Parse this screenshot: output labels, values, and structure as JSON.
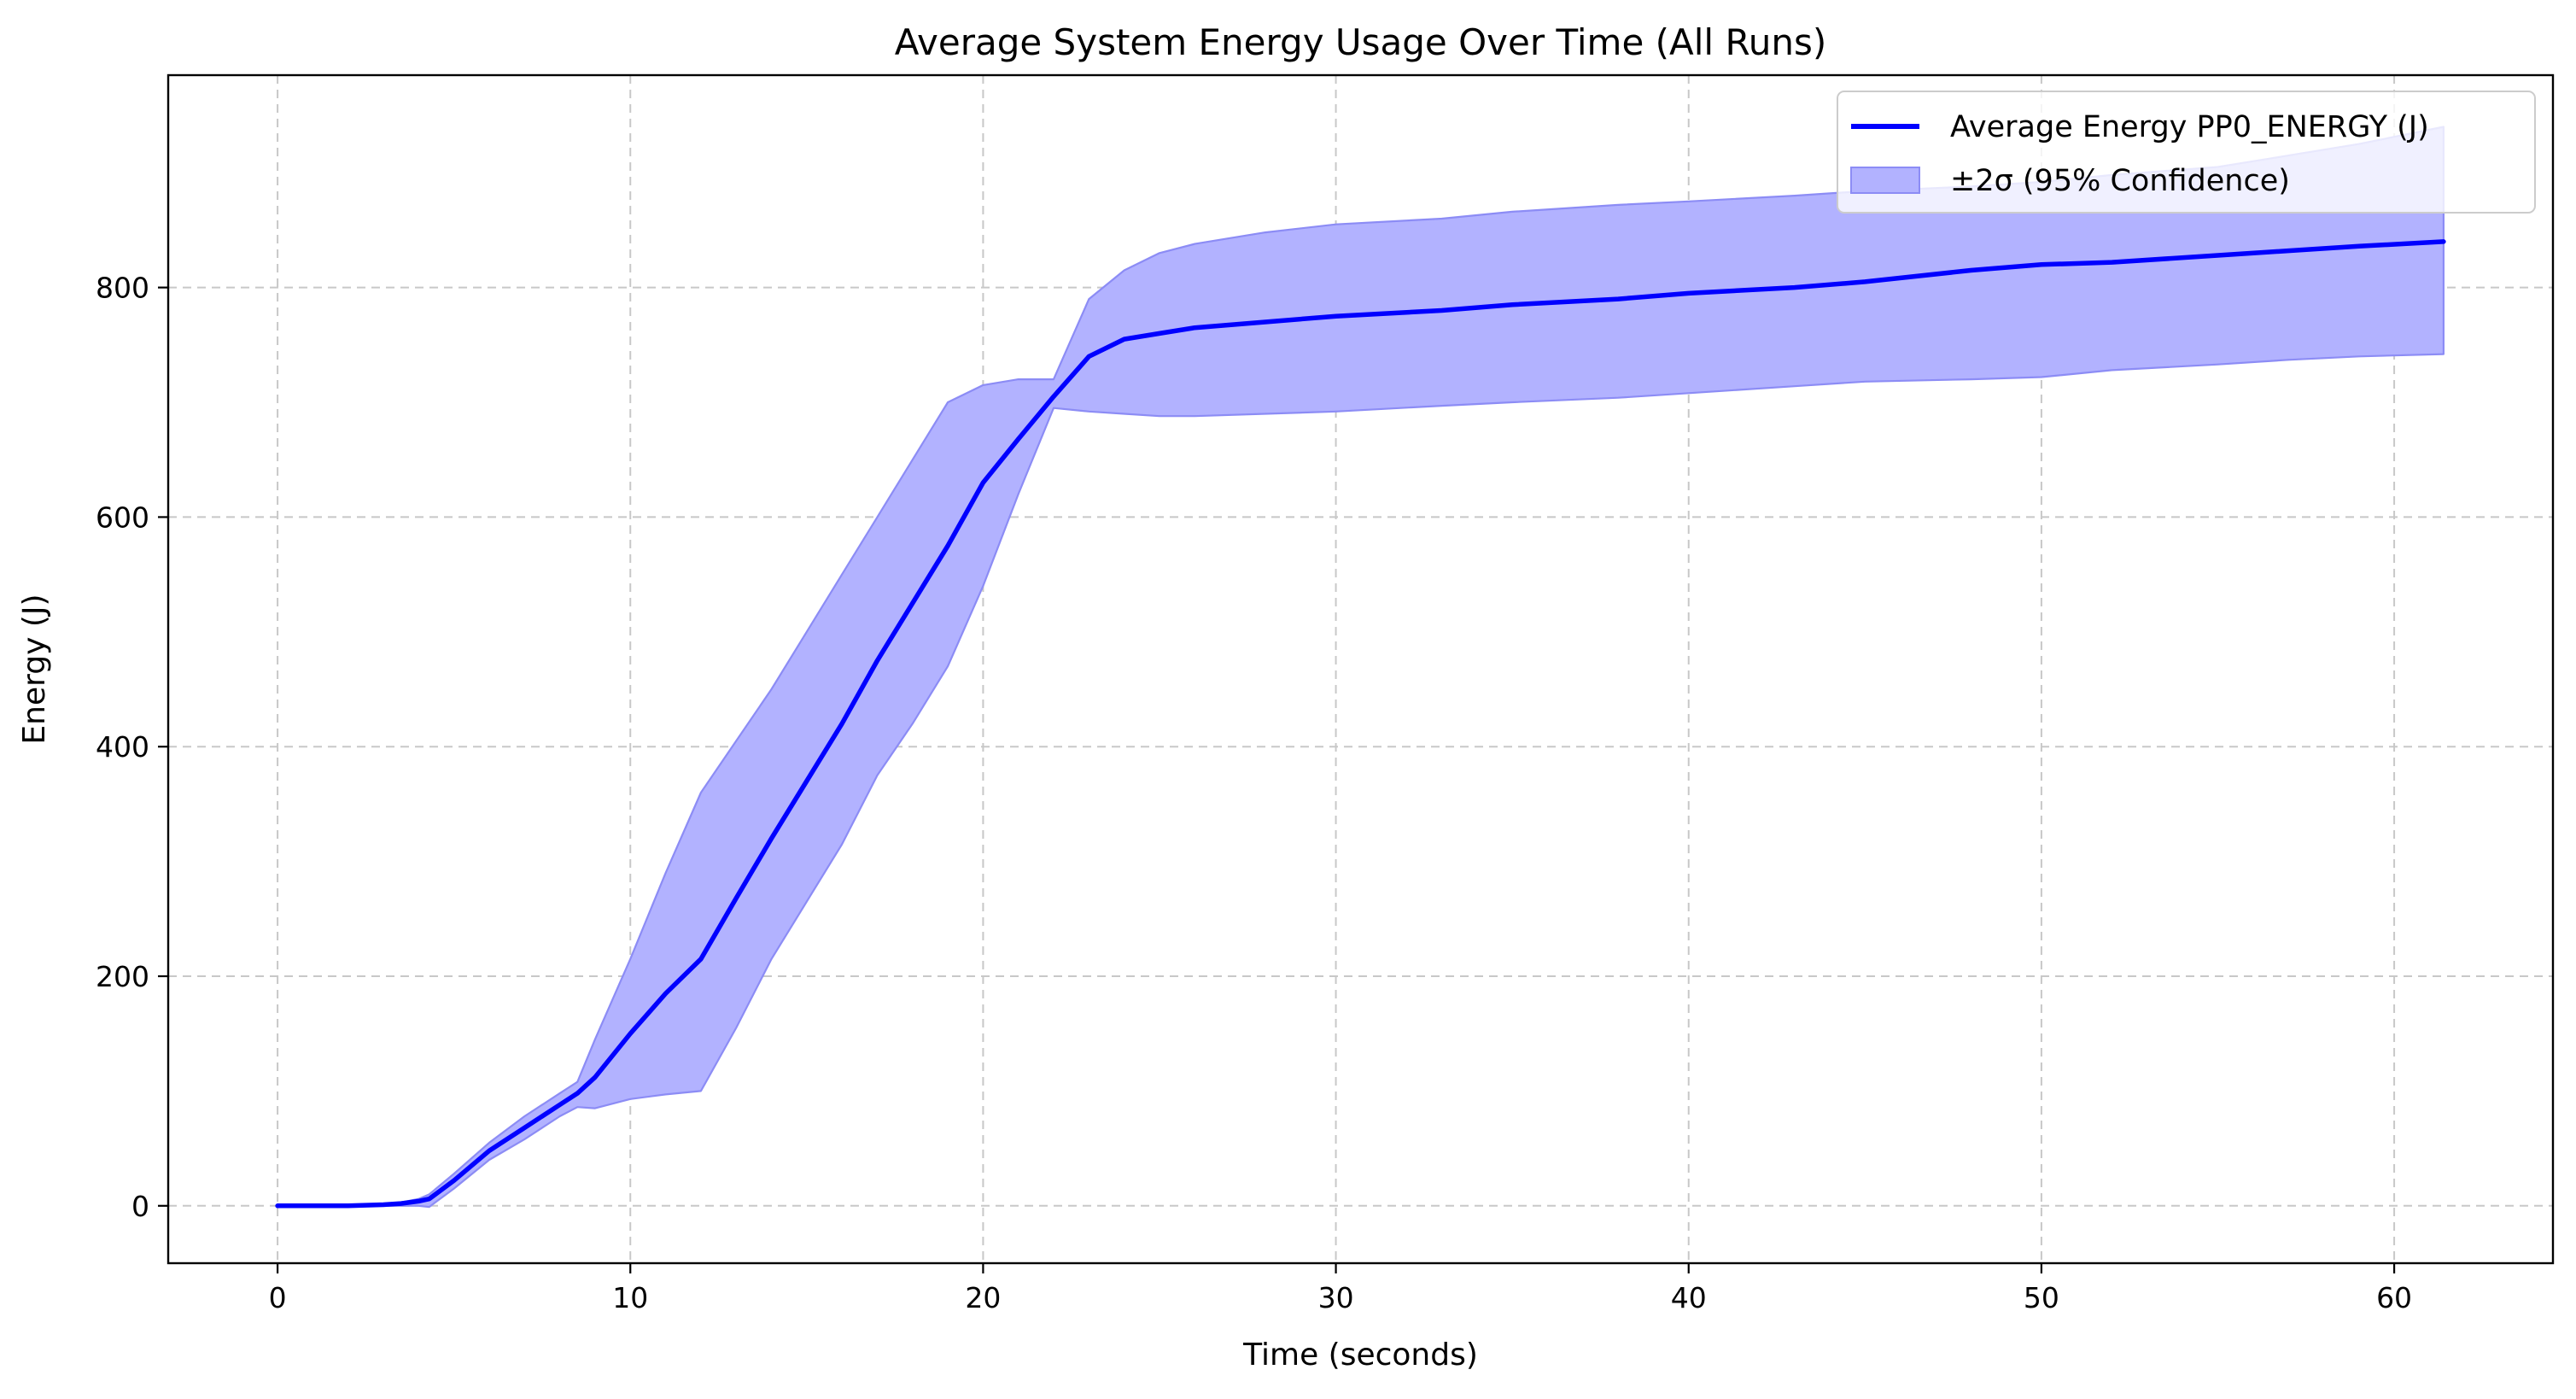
{
  "chart_data": {
    "type": "line",
    "title": "Average System Energy Usage Over Time (All Runs)",
    "xlabel": "Time (seconds)",
    "ylabel": "Energy (J)",
    "xlim": [
      -3.1,
      64.5
    ],
    "ylim": [
      -50,
      985
    ],
    "xticks": [
      0,
      10,
      20,
      30,
      40,
      50,
      60
    ],
    "yticks": [
      0,
      200,
      400,
      600,
      800
    ],
    "grid": true,
    "legend_position": "top-right",
    "colors": {
      "line": "#0000ff",
      "band_fill": "#b2b2ff",
      "band_edge": "#8c8cf5",
      "grid": "#c8c8c8"
    },
    "series": [
      {
        "name": "Average Energy PP0_ENERGY (J)",
        "kind": "line",
        "x": [
          0,
          2,
          3,
          3.5,
          4,
          4.3,
          5,
          6,
          7,
          8,
          8.5,
          9,
          10,
          11,
          12,
          13,
          14,
          15,
          16,
          17,
          18,
          19,
          20,
          21,
          22,
          23,
          24,
          25,
          26,
          28,
          30,
          33,
          35,
          38,
          40,
          43,
          45,
          48,
          50,
          52,
          55,
          57,
          59,
          61.4
        ],
        "y": [
          0,
          0,
          1,
          2,
          4,
          6,
          22,
          48,
          68,
          88,
          98,
          112,
          150,
          185,
          215,
          268,
          320,
          370,
          420,
          475,
          525,
          575,
          630,
          668,
          705,
          740,
          755,
          760,
          765,
          770,
          775,
          780,
          785,
          790,
          795,
          800,
          805,
          815,
          820,
          822,
          828,
          832,
          836,
          840
        ]
      },
      {
        "name": "±2σ (95% Confidence)",
        "kind": "band",
        "x": [
          0,
          2,
          3,
          3.5,
          4,
          4.3,
          5,
          6,
          7,
          8,
          8.5,
          9,
          10,
          11,
          12,
          13,
          14,
          15,
          16,
          17,
          18,
          19,
          20,
          21,
          22,
          23,
          24,
          25,
          26,
          28,
          30,
          33,
          35,
          38,
          40,
          43,
          45,
          48,
          50,
          52,
          55,
          57,
          59,
          61.4
        ],
        "upper": [
          0,
          0,
          1,
          3,
          6,
          10,
          28,
          55,
          78,
          98,
          108,
          145,
          215,
          290,
          360,
          405,
          450,
          500,
          550,
          600,
          650,
          700,
          715,
          720,
          720,
          790,
          815,
          830,
          838,
          848,
          855,
          860,
          866,
          872,
          875,
          880,
          884,
          888,
          892,
          898,
          905,
          915,
          925,
          940
        ],
        "lower": [
          0,
          0,
          0,
          0,
          0,
          -1,
          15,
          40,
          58,
          78,
          86,
          85,
          93,
          97,
          100,
          155,
          215,
          265,
          315,
          375,
          420,
          470,
          540,
          620,
          695,
          692,
          690,
          688,
          688,
          690,
          692,
          697,
          700,
          704,
          708,
          714,
          718,
          720,
          722,
          728,
          733,
          737,
          740,
          742
        ]
      }
    ]
  }
}
